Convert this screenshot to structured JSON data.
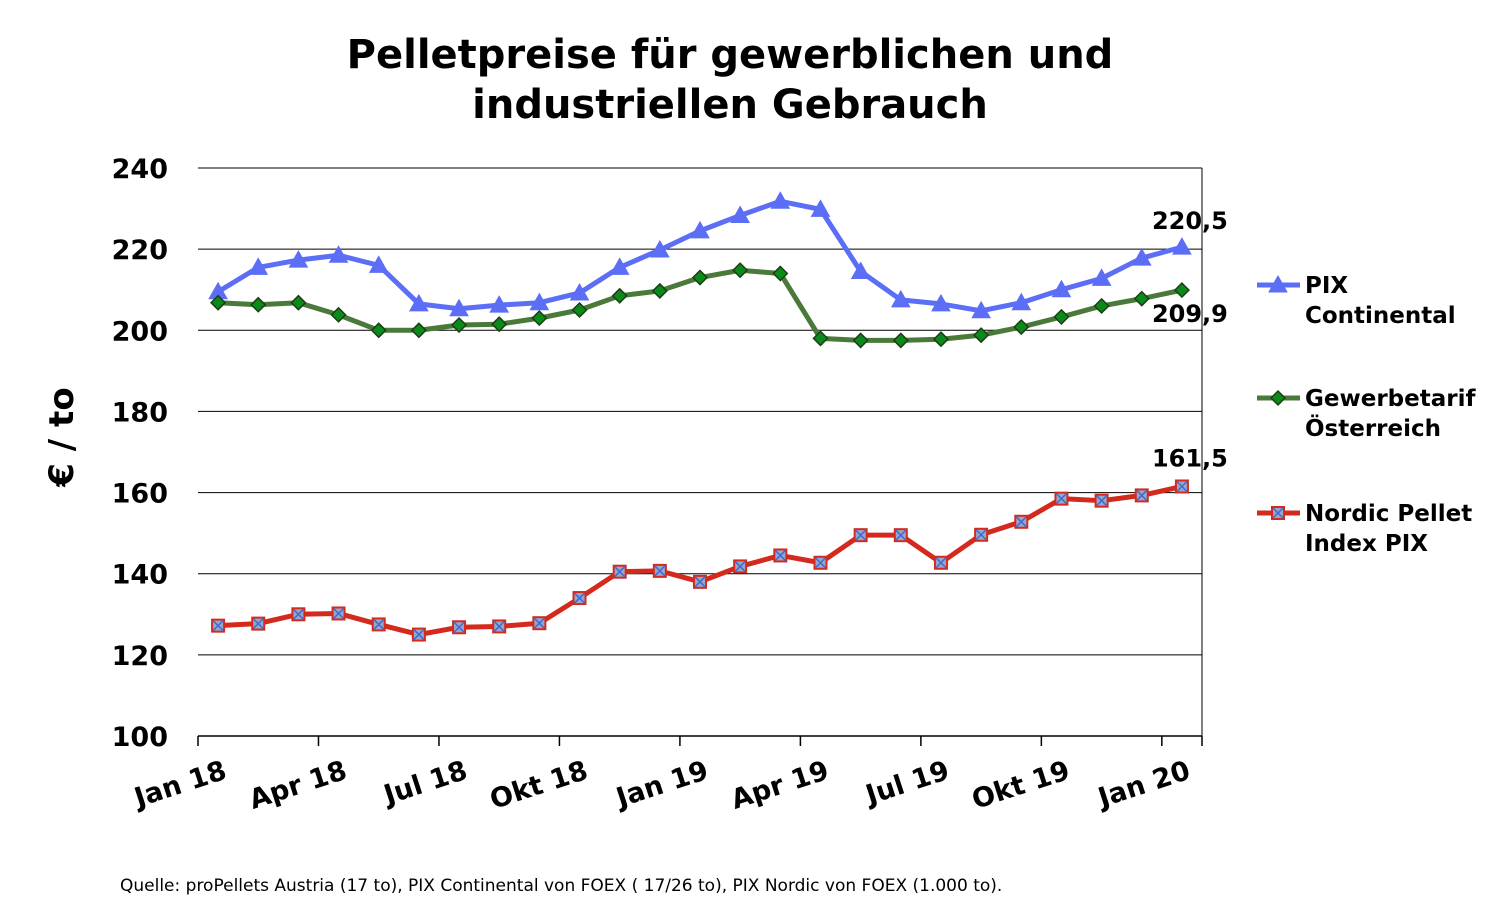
{
  "title_line1": "Pelletpreise für gewerblichen und",
  "title_line2": "industriellen Gebrauch",
  "footer": "Quelle: proPellets Austria (17 to), PIX Continental von FOEX ( 17/26 to), PIX Nordic von FOEX (1.000 to).",
  "chart_data": {
    "type": "line",
    "title": "Pelletpreise für gewerblichen und industriellen Gebrauch",
    "xlabel": "",
    "ylabel": "€ / to",
    "ylim": [
      100,
      240
    ],
    "yticks": [
      100,
      120,
      140,
      160,
      180,
      200,
      220,
      240
    ],
    "grid": "horizontal",
    "legend_position": "right",
    "x": [
      "Jan 18",
      "Feb 18",
      "Mär 18",
      "Apr 18",
      "Mai 18",
      "Jun 18",
      "Jul 18",
      "Aug 18",
      "Sep 18",
      "Okt 18",
      "Nov 18",
      "Dez 18",
      "Jan 19",
      "Feb 19",
      "Mär 19",
      "Apr 19",
      "Mai 19",
      "Jun 19",
      "Jul 19",
      "Aug 19",
      "Sep 19",
      "Okt 19",
      "Nov 19",
      "Dez 19",
      "Jan 20"
    ],
    "xtick_labels": [
      {
        "index": 0,
        "label": "Jan 18"
      },
      {
        "index": 3,
        "label": "Apr 18"
      },
      {
        "index": 6,
        "label": "Jul 18"
      },
      {
        "index": 9,
        "label": "Okt 18"
      },
      {
        "index": 12,
        "label": "Jan 19"
      },
      {
        "index": 15,
        "label": "Apr 19"
      },
      {
        "index": 18,
        "label": "Jul 19"
      },
      {
        "index": 21,
        "label": "Okt 19"
      },
      {
        "index": 24,
        "label": "Jan 20"
      }
    ],
    "series": [
      {
        "name": "PIX Continental",
        "legend_lines": [
          "PIX",
          "Continental"
        ],
        "color": "#5b6ef5",
        "marker": "triangle",
        "values": [
          209.5,
          215.5,
          217.3,
          218.5,
          216,
          206.5,
          205.3,
          206.2,
          206.8,
          209.2,
          215.5,
          219.8,
          224.5,
          228.3,
          231.8,
          229.8,
          214.5,
          207.5,
          206.5,
          204.8,
          206.8,
          210,
          212.8,
          217.8,
          220.5
        ],
        "last_label": "220,5"
      },
      {
        "name": "Gewerbetarif Österreich",
        "legend_lines": [
          "Gewerbetarif",
          "Österreich"
        ],
        "color": "#4a7a3a",
        "marker": "diamond",
        "values": [
          206.8,
          206.3,
          206.8,
          203.8,
          200,
          200,
          201.3,
          201.5,
          203,
          205,
          208.5,
          209.7,
          213,
          214.8,
          214,
          198,
          197.5,
          197.5,
          197.8,
          198.8,
          200.8,
          203.3,
          206,
          207.8,
          209.9
        ],
        "last_label": "209,9"
      },
      {
        "name": "Nordic Pellet Index PIX",
        "legend_lines": [
          "Nordic Pellet",
          "Index PIX"
        ],
        "color": "#d42a1e",
        "marker": "x-square",
        "values": [
          127.2,
          127.7,
          130,
          130.2,
          127.5,
          125,
          126.8,
          127,
          127.8,
          134,
          140.5,
          140.7,
          138,
          141.8,
          144.5,
          142.7,
          149.5,
          149.5,
          142.7,
          149.6,
          152.8,
          158.5,
          158,
          159.3,
          161.5
        ],
        "last_label": "161,5"
      }
    ]
  }
}
